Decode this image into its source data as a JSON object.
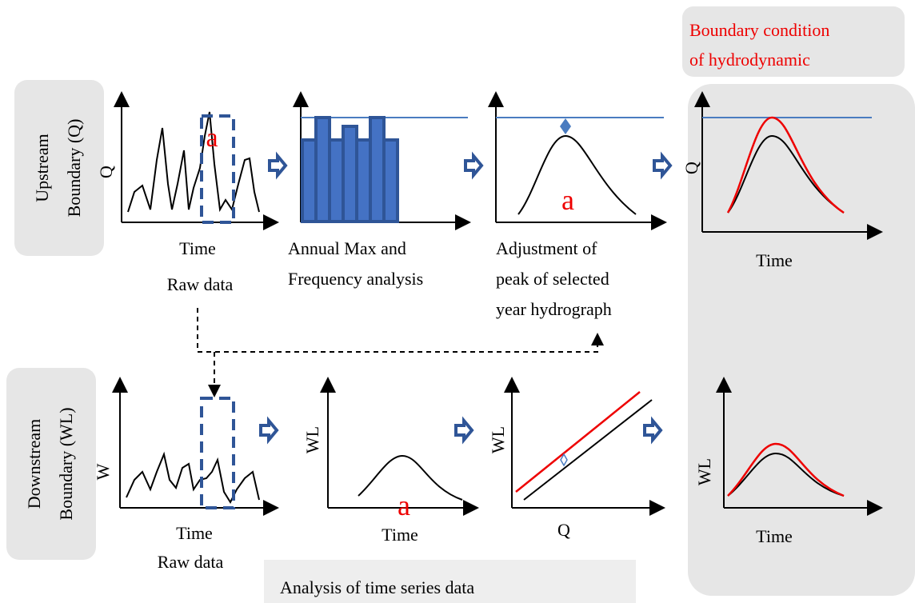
{
  "header": {
    "title_lines": [
      "Boundary condition",
      "of hydrodynamic"
    ]
  },
  "rows": [
    {
      "label_lines": [
        "Upstream",
        "Boundary (Q)"
      ],
      "panels": [
        {
          "y_label": "Q",
          "x_label": "Time",
          "caption": "Raw data",
          "marker": "a"
        },
        {
          "caption_lines": [
            "Annual Max and",
            "Frequency analysis"
          ]
        },
        {
          "marker": "a",
          "caption_lines": [
            "Adjustment of",
            "peak of selected",
            "year hydrograph"
          ]
        },
        {
          "y_label": "Q",
          "x_label": "Time"
        }
      ]
    },
    {
      "label_lines": [
        "Downstream",
        "Boundary (WL)"
      ],
      "panels": [
        {
          "y_label": "W",
          "x_label": "Time",
          "caption": "Raw data"
        },
        {
          "y_label": "WL",
          "x_label": "Time",
          "marker": "a"
        },
        {
          "y_label": "WL",
          "x_label": "Q"
        },
        {
          "y_label": "WL",
          "x_label": "Time"
        }
      ]
    }
  ],
  "footer": {
    "label": "Analysis of time series data"
  }
}
